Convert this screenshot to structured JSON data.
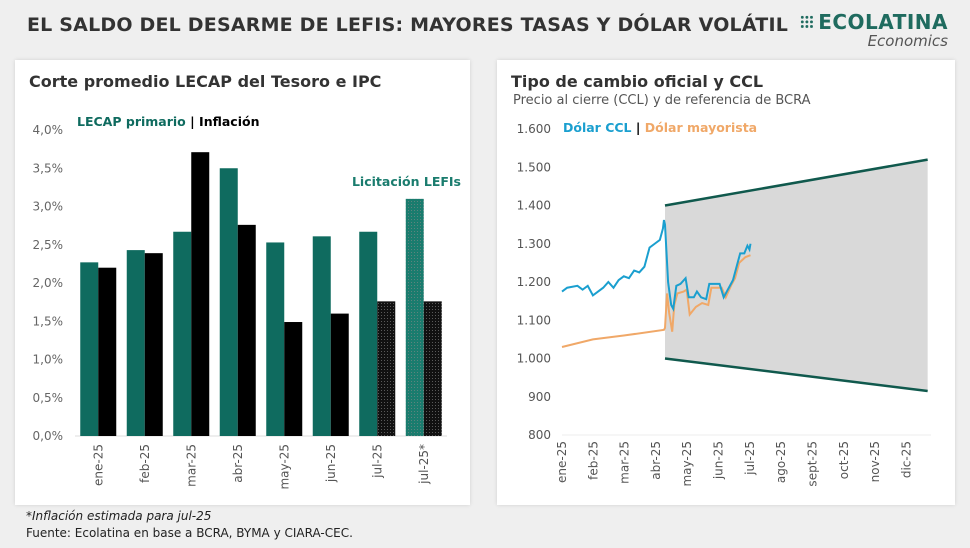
{
  "header": {
    "title": "EL SALDO DEL DESARME DE LEFIS: MAYORES TASAS Y DÓLAR VOLÁTIL",
    "logo_brand": "ECOLATINA",
    "logo_sub": "Economics"
  },
  "colors": {
    "lecap": "#0f6b5f",
    "inflation": "#000000",
    "ccl": "#1a9fcf",
    "mayorista": "#f0a868",
    "band": "#d9d9d9",
    "band_line": "#10594d"
  },
  "chart_data": [
    {
      "type": "bar",
      "title": "Corte promedio LECAP del Tesoro e IPC",
      "categories": [
        "ene-25",
        "feb-25",
        "mar-25",
        "abr-25",
        "may-25",
        "jun-25",
        "jul-25",
        "jul-25*"
      ],
      "series": [
        {
          "name": "LECAP primario",
          "values": [
            2.27,
            2.43,
            2.67,
            3.5,
            2.53,
            2.61,
            2.67,
            3.1
          ]
        },
        {
          "name": "Inflación",
          "values": [
            2.2,
            2.39,
            3.71,
            2.76,
            1.49,
            1.6,
            1.76,
            1.76
          ]
        }
      ],
      "legend": {
        "lecap": "LECAP primario",
        "sep": "|",
        "inflation": "Inflación"
      },
      "annotation": "Licitación LEFIs",
      "ylim": [
        0,
        4
      ],
      "yticks": [
        "0,0%",
        "0,5%",
        "1,0%",
        "1,5%",
        "2,0%",
        "2,5%",
        "3,0%",
        "3,5%",
        "4,0%"
      ]
    },
    {
      "type": "line",
      "title": "Tipo de cambio oficial y CCL",
      "subtitle": "Precio al cierre (CCL) y de referencia de BCRA",
      "legend": {
        "ccl": "Dólar CCL",
        "sep": "|",
        "mayorista": "Dólar mayorista"
      },
      "xticks": [
        "ene-25",
        "feb-25",
        "mar-25",
        "abr-25",
        "may-25",
        "jun-25",
        "jul-25",
        "ago-25",
        "sept-25",
        "oct-25",
        "nov-25",
        "dic-25"
      ],
      "ylim": [
        800,
        1600
      ],
      "yticks": [
        "800",
        "900",
        "1.000",
        "1.100",
        "1.200",
        "1.300",
        "1.400",
        "1.500",
        "1.600"
      ],
      "x_unit": "day of 2025",
      "band": {
        "start": [
          100,
          1400,
          1000
        ],
        "end": [
          355,
          1520,
          915
        ]
      },
      "ccl": [
        [
          0,
          1175
        ],
        [
          5,
          1185
        ],
        [
          15,
          1190
        ],
        [
          20,
          1180
        ],
        [
          25,
          1190
        ],
        [
          30,
          1165
        ],
        [
          40,
          1185
        ],
        [
          45,
          1200
        ],
        [
          50,
          1185
        ],
        [
          55,
          1205
        ],
        [
          60,
          1215
        ],
        [
          65,
          1210
        ],
        [
          70,
          1230
        ],
        [
          75,
          1225
        ],
        [
          80,
          1240
        ],
        [
          85,
          1290
        ],
        [
          90,
          1300
        ],
        [
          95,
          1310
        ],
        [
          98,
          1340
        ],
        [
          99,
          1362
        ],
        [
          100,
          1350
        ],
        [
          101,
          1300
        ],
        [
          103,
          1200
        ],
        [
          106,
          1140
        ],
        [
          108,
          1130
        ],
        [
          111,
          1190
        ],
        [
          115,
          1195
        ],
        [
          120,
          1210
        ],
        [
          123,
          1160
        ],
        [
          128,
          1160
        ],
        [
          131,
          1175
        ],
        [
          135,
          1160
        ],
        [
          140,
          1155
        ],
        [
          143,
          1195
        ],
        [
          148,
          1195
        ],
        [
          153,
          1195
        ],
        [
          157,
          1160
        ],
        [
          161,
          1180
        ],
        [
          166,
          1205
        ],
        [
          170,
          1245
        ],
        [
          173,
          1275
        ],
        [
          177,
          1275
        ],
        [
          180,
          1295
        ],
        [
          182,
          1285
        ],
        [
          183,
          1300
        ]
      ],
      "mayorista": [
        [
          0,
          1030
        ],
        [
          30,
          1050
        ],
        [
          60,
          1060
        ],
        [
          99,
          1075
        ],
        [
          100,
          1080
        ],
        [
          102,
          1170
        ],
        [
          104,
          1120
        ],
        [
          107,
          1070
        ],
        [
          109,
          1140
        ],
        [
          112,
          1170
        ],
        [
          118,
          1175
        ],
        [
          121,
          1180
        ],
        [
          124,
          1115
        ],
        [
          130,
          1135
        ],
        [
          136,
          1145
        ],
        [
          142,
          1140
        ],
        [
          145,
          1185
        ],
        [
          155,
          1185
        ],
        [
          159,
          1160
        ],
        [
          164,
          1190
        ],
        [
          168,
          1210
        ],
        [
          172,
          1250
        ],
        [
          178,
          1265
        ],
        [
          183,
          1270
        ]
      ]
    }
  ],
  "footer": {
    "note": "*Inflación estimada para jul-25",
    "source": "Fuente: Ecolatina en base a BCRA, BYMA y CIARA-CEC."
  }
}
